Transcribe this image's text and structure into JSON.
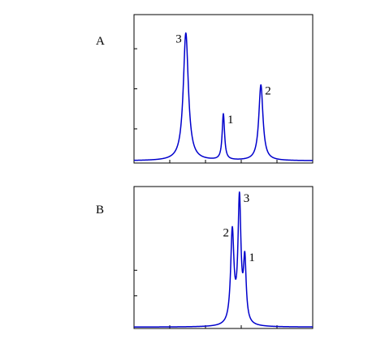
{
  "chart_data": [
    {
      "type": "line",
      "panel_label": "A",
      "xlim": [
        0,
        100
      ],
      "ylim": [
        0,
        100
      ],
      "baseline": 1.5,
      "peaks": [
        {
          "label": "3",
          "x": 29,
          "height": 86,
          "width": 1.7
        },
        {
          "label": "1",
          "x": 50,
          "height": 31,
          "width": 0.8
        },
        {
          "label": "2",
          "x": 71,
          "height": 51,
          "width": 1.4
        }
      ],
      "xticks": [
        20,
        40,
        60,
        80
      ],
      "yticks": [
        23,
        50,
        77
      ],
      "grid": false
    },
    {
      "type": "line",
      "panel_label": "B",
      "xlim": [
        0,
        100
      ],
      "ylim": [
        0,
        100
      ],
      "baseline": 1.0,
      "peaks": [
        {
          "label": "2",
          "x": 55,
          "height": 65,
          "width": 1.1
        },
        {
          "label": "3",
          "x": 59,
          "height": 87,
          "width": 1.0
        },
        {
          "label": "1",
          "x": 62,
          "height": 43,
          "width": 0.9
        }
      ],
      "xticks": [
        20,
        40,
        60,
        80
      ],
      "yticks": [
        23,
        41
      ],
      "grid": false
    }
  ]
}
